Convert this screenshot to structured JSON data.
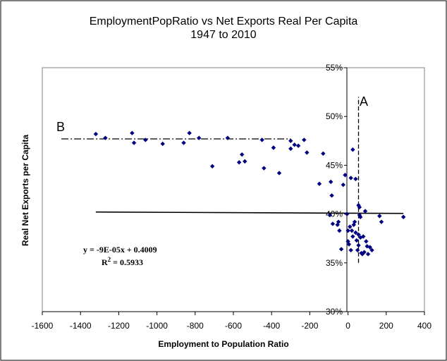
{
  "chart_data": {
    "type": "scatter",
    "title": "EmploymentPopRatio vs Net Exports Real Per Capita",
    "subtitle": "1947 to 2010",
    "xlabel": "Employment to Population Ratio",
    "ylabel": "Real Net Exports per Capita",
    "xlim": [
      -1600,
      400
    ],
    "ylim": [
      30,
      55
    ],
    "x_ticks": [
      -1600,
      -1400,
      -1200,
      -1000,
      -800,
      -600,
      -400,
      -200,
      0,
      200,
      400
    ],
    "x_tick_labels": [
      "-1600",
      "-1400",
      "-1200",
      "-1000",
      "-800",
      "-600",
      "-400",
      "-200",
      "0",
      "200",
      "400"
    ],
    "y_ticks": [
      30,
      35,
      40,
      45,
      50,
      55
    ],
    "y_tick_labels": [
      "30%",
      "35%",
      "40%",
      "45%",
      "50%",
      "55%"
    ],
    "grid": false,
    "marker_color": "#000080",
    "series": [
      {
        "name": "EmploymentPopRatio vs Net Exports",
        "points": [
          [
            -1320,
            48.2
          ],
          [
            -1270,
            47.8
          ],
          [
            -1130,
            48.3
          ],
          [
            -1120,
            47.3
          ],
          [
            -1060,
            47.6
          ],
          [
            -970,
            47.2
          ],
          [
            -860,
            47.3
          ],
          [
            -830,
            48.3
          ],
          [
            -780,
            47.8
          ],
          [
            -710,
            44.9
          ],
          [
            -630,
            47.8
          ],
          [
            -570,
            45.3
          ],
          [
            -555,
            46.1
          ],
          [
            -540,
            45.4
          ],
          [
            -450,
            47.6
          ],
          [
            -440,
            44.7
          ],
          [
            -390,
            46.8
          ],
          [
            -360,
            44.2
          ],
          [
            -300,
            47.5
          ],
          [
            -300,
            46.7
          ],
          [
            -280,
            47.1
          ],
          [
            -260,
            47.0
          ],
          [
            -230,
            47.6
          ],
          [
            -215,
            46.3
          ],
          [
            -150,
            43.1
          ],
          [
            -130,
            46.2
          ],
          [
            -95,
            39.9
          ],
          [
            -90,
            43.3
          ],
          [
            -85,
            41.9
          ],
          [
            -80,
            39.0
          ],
          [
            -55,
            38.9
          ],
          [
            -50,
            39.2
          ],
          [
            -45,
            38.3
          ],
          [
            -35,
            36.4
          ],
          [
            -25,
            43.0
          ],
          [
            -15,
            44.0
          ],
          [
            -5,
            40.0
          ],
          [
            0,
            37.2
          ],
          [
            0,
            38.3
          ],
          [
            5,
            36.9
          ],
          [
            10,
            38.7
          ],
          [
            15,
            36.3
          ],
          [
            15,
            43.7
          ],
          [
            20,
            38.3
          ],
          [
            25,
            46.6
          ],
          [
            25,
            37.7
          ],
          [
            30,
            38.9
          ],
          [
            35,
            39.2
          ],
          [
            40,
            43.6
          ],
          [
            40,
            38.1
          ],
          [
            45,
            37.3
          ],
          [
            50,
            36.3
          ],
          [
            55,
            40.9
          ],
          [
            55,
            37.9
          ],
          [
            55,
            36.8
          ],
          [
            60,
            40.7
          ],
          [
            60,
            39.9
          ],
          [
            65,
            39.7
          ],
          [
            65,
            37.6
          ],
          [
            70,
            36.0
          ],
          [
            75,
            35.9
          ],
          [
            80,
            37.7
          ],
          [
            85,
            36.1
          ],
          [
            90,
            40.3
          ],
          [
            95,
            37.2
          ],
          [
            100,
            36.7
          ],
          [
            105,
            35.9
          ],
          [
            115,
            36.6
          ],
          [
            125,
            36.3
          ],
          [
            165,
            39.8
          ],
          [
            175,
            39.2
          ],
          [
            290,
            39.7
          ]
        ]
      }
    ],
    "trendline": {
      "x_start": -1320,
      "x_end": 290,
      "slope": -9e-05,
      "intercept": 40.09
    },
    "equation": "y = -9E-05x + 0.4009",
    "r_squared_base": "R",
    "r_squared_sup": "2",
    "r_squared_value": " = 0.5933",
    "reference_lines": {
      "horizontal": {
        "label": "B",
        "y": 47.7,
        "x_from": -1500,
        "x_to": -300
      },
      "vertical": {
        "label": "A",
        "x": 55,
        "y_from": 35.0,
        "y_to": 52.0
      }
    }
  }
}
